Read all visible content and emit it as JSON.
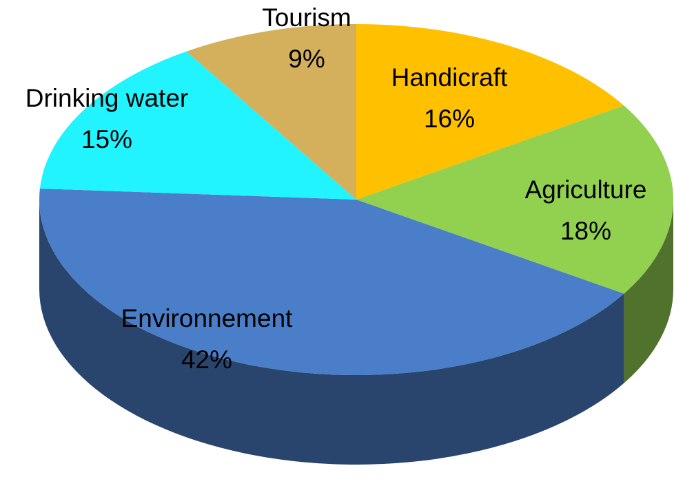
{
  "chart_data": {
    "type": "pie",
    "categories": [
      "Handicraft",
      "Agriculture",
      "Environnement",
      "Drinking water",
      "Tourism"
    ],
    "values": [
      16,
      18,
      42,
      15,
      9
    ],
    "value_labels": [
      "16%",
      "18%",
      "42%",
      "15%",
      "9%"
    ],
    "colors": [
      "#ffc000",
      "#92d050",
      "#4a7ec8",
      "#21f3ff",
      "#d4b05c"
    ]
  }
}
